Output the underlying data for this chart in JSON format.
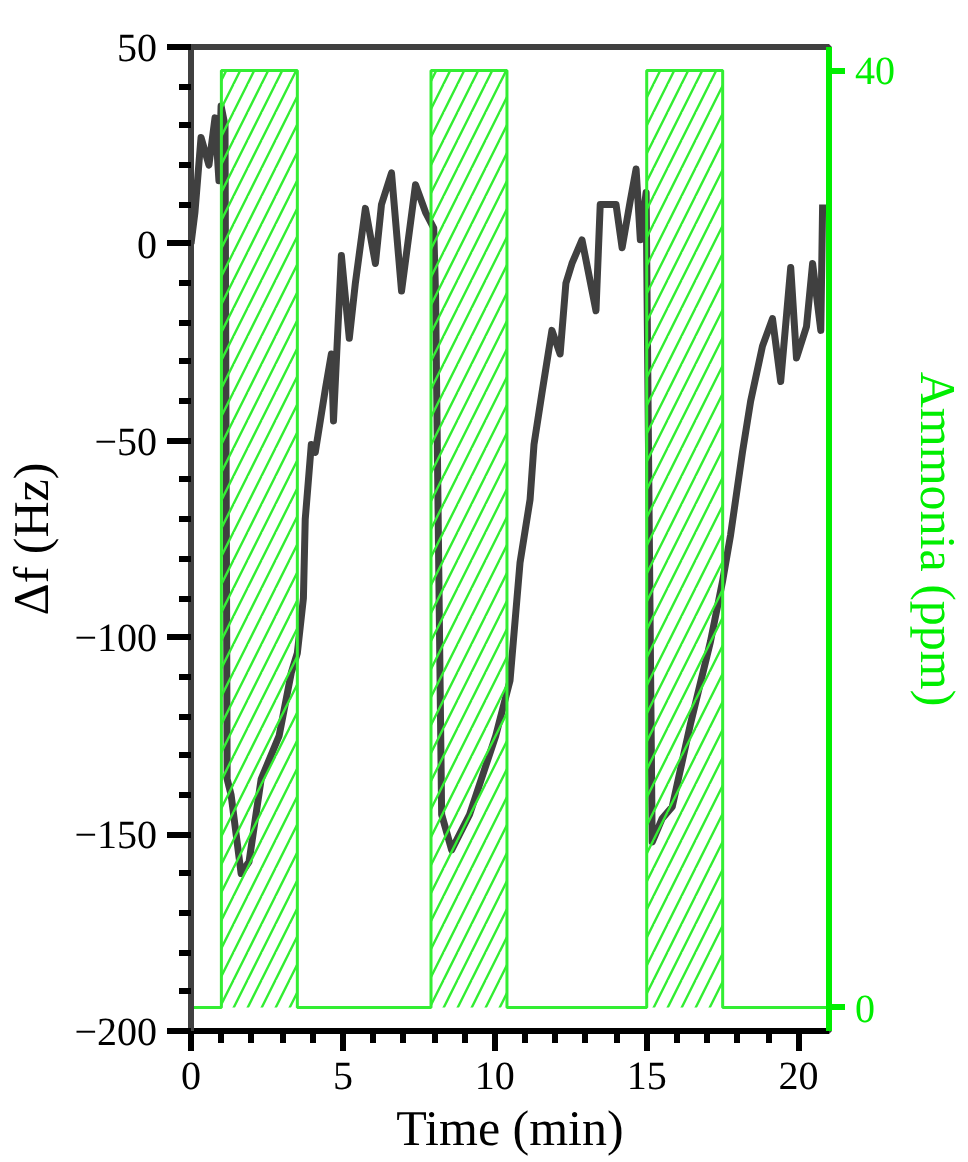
{
  "chart_data": {
    "type": "line",
    "xlabel": "Time (min)",
    "ylabel": "Δf (Hz)",
    "y2label": "Ammonia (ppm)",
    "xlim": [
      0,
      21
    ],
    "xticks": [
      0,
      5,
      10,
      15,
      20
    ],
    "ylim": [
      -200,
      50
    ],
    "yticks": [
      -200,
      -150,
      -100,
      -50,
      0,
      50
    ],
    "y2lim": [
      -1,
      41
    ],
    "y2ticks": [
      0,
      40
    ],
    "grid": false,
    "series": [
      {
        "color": "#404040",
        "x": [
          0,
          0.13,
          0.33,
          0.59,
          0.79,
          0.92,
          0.99,
          1.12,
          1.19,
          1.32,
          1.65,
          1.91,
          2.31,
          2.9,
          3.3,
          3.5,
          3.7,
          3.76,
          3.96,
          4.09,
          4.42,
          4.62,
          4.69,
          4.95,
          5.21,
          5.41,
          5.74,
          6.07,
          6.27,
          6.6,
          6.93,
          7.39,
          7.72,
          7.99,
          8.05,
          8.25,
          8.58,
          9.17,
          10.03,
          10.5,
          10.83,
          11.16,
          11.29,
          11.55,
          11.88,
          12.15,
          12.34,
          12.54,
          12.87,
          13.33,
          13.47,
          13.99,
          14.19,
          14.46,
          14.65,
          14.79,
          14.98,
          15.18,
          15.51,
          15.84,
          16.44,
          17.1,
          17.49,
          17.76,
          18.15,
          18.42,
          18.81,
          19.14,
          19.41,
          19.74,
          19.93,
          20.26,
          20.46,
          20.73,
          20.79
        ],
        "values": [
          0,
          8,
          27,
          20,
          32,
          16,
          35,
          30,
          -136,
          -140,
          -160,
          -157,
          -136,
          -125,
          -109,
          -104,
          -90,
          -70,
          -51,
          -53,
          -37,
          -28,
          -45,
          -3,
          -24,
          -10,
          9,
          -5,
          10,
          18,
          -12,
          15,
          8,
          4,
          -13,
          -145,
          -154,
          -145,
          -125,
          -111,
          -81,
          -65,
          -51,
          -38,
          -22,
          -28,
          -10,
          -5,
          1,
          -17,
          10,
          10,
          -1,
          11,
          19,
          1,
          13,
          -152,
          -146,
          -143,
          -122,
          -101,
          -86,
          -74,
          -53,
          -40,
          -26,
          -19,
          -35,
          -6,
          -29,
          -21,
          -5,
          -22,
          10
        ]
      },
      {
        "type": "area",
        "axis": "y2",
        "color": "#33ee33",
        "x": [
          0,
          1,
          1,
          3.5,
          3.5,
          7.9,
          7.9,
          10.4,
          10.4,
          15,
          15,
          17.5,
          17.5,
          21
        ],
        "values": [
          0,
          0,
          40,
          40,
          0,
          0,
          40,
          40,
          0,
          0,
          40,
          40,
          0,
          0
        ]
      }
    ]
  }
}
